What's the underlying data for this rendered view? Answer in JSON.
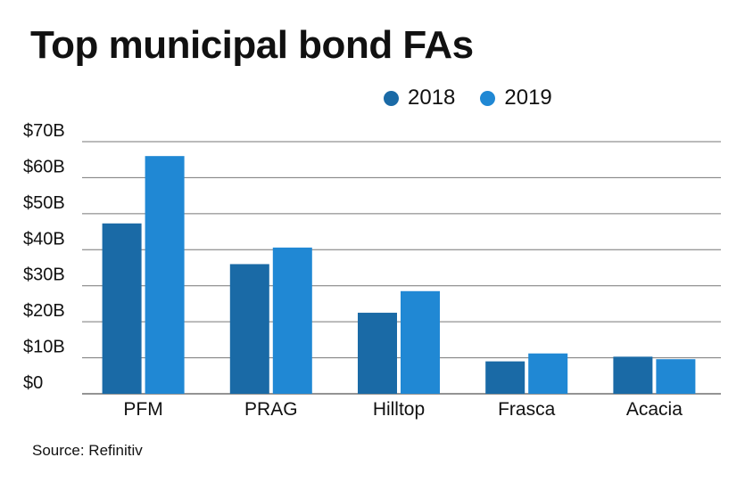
{
  "chart_data": {
    "type": "bar",
    "title": "Top municipal bond FAs",
    "categories": [
      "PFM",
      "PRAG",
      "Hilltop",
      "Frasca",
      "Acacia"
    ],
    "series": [
      {
        "name": "2018",
        "values": [
          47.3,
          36.0,
          22.5,
          9.0,
          10.3
        ],
        "color": "#1a6aa6"
      },
      {
        "name": "2019",
        "values": [
          66.0,
          40.6,
          28.5,
          11.2,
          9.6
        ],
        "color": "#2088d4"
      }
    ],
    "yticks": [
      "$70B",
      "$60B",
      "$50B",
      "$40B",
      "$30B",
      "$20B",
      "$10B",
      "$0"
    ],
    "ylim": [
      0,
      70
    ],
    "grid": true,
    "legend": "top-right",
    "source": "Source: Refinitiv"
  }
}
